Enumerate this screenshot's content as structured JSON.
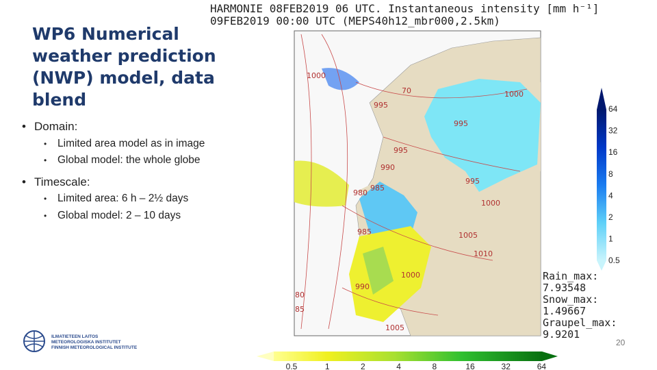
{
  "slide": {
    "title": "WP6 Numerical weather prediction (NWP) model, data blend",
    "bullets": [
      {
        "text": "Domain:",
        "sub": [
          "Limited area model as in image",
          "Global model: the whole globe"
        ]
      },
      {
        "text": "Timescale:",
        "sub": [
          "Limited area: 6 h – 2½ days",
          "Global model: 2 – 10 days"
        ]
      }
    ],
    "page_number": "20"
  },
  "map": {
    "header": [
      "HARMONIE 08FEB2019 06 UTC. Instantaneous intensity [mm h⁻¹]",
      "09FEB2019 00:00 UTC (MEPS40h12_mbr000,2.5km)"
    ],
    "isobar_labels": [
      "1000",
      "70",
      "995",
      "1000",
      "995",
      "995",
      "990",
      "995",
      "985",
      "980",
      "1000",
      "985",
      "1005",
      "1010",
      "1000",
      "990",
      "80",
      "85",
      "1005"
    ],
    "snow_scale": [
      "64",
      "32",
      "16",
      "8",
      "4",
      "2",
      "1",
      "0.5"
    ],
    "rain_scale": [
      "0.5",
      "1",
      "2",
      "4",
      "8",
      "16",
      "32",
      "64"
    ],
    "stats": [
      "Rain_max:",
      "7.93548",
      "Snow_max:",
      "1.49667",
      "Graupel_max:",
      "9.9201"
    ]
  },
  "logo": [
    "ILMATIETEEN LAITOS",
    "METEOROLOGISKA INSTITUTET",
    "FINNISH METEOROLOGICAL INSTITUTE"
  ]
}
